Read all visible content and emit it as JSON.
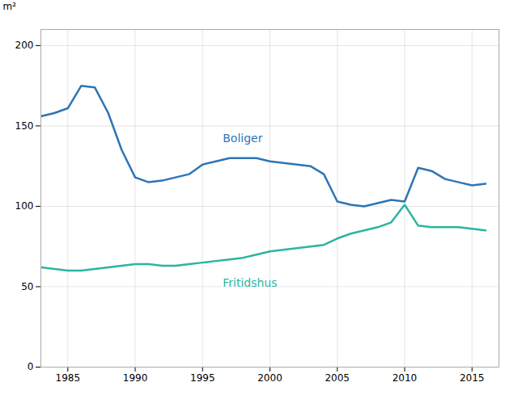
{
  "chart_data": {
    "type": "line",
    "ylabel": "m²",
    "x": [
      1983,
      1984,
      1985,
      1986,
      1987,
      1988,
      1989,
      1990,
      1991,
      1992,
      1993,
      1994,
      1995,
      1996,
      1997,
      1998,
      1999,
      2000,
      2001,
      2002,
      2003,
      2004,
      2005,
      2006,
      2007,
      2008,
      2009,
      2010,
      2011,
      2012,
      2013,
      2014,
      2015,
      2016
    ],
    "series": [
      {
        "name": "Boliger",
        "color": "#2e75b6",
        "values": [
          156,
          158,
          161,
          175,
          174,
          158,
          135,
          118,
          115,
          116,
          118,
          120,
          126,
          128,
          130,
          130,
          130,
          128,
          127,
          126,
          125,
          120,
          103,
          101,
          100,
          102,
          104,
          103,
          124,
          122,
          117,
          115,
          113,
          114
        ]
      },
      {
        "name": "Fritidshus",
        "color": "#2ab5a0",
        "values": [
          62,
          61,
          60,
          60,
          61,
          62,
          63,
          64,
          64,
          63,
          63,
          64,
          65,
          66,
          67,
          68,
          70,
          72,
          73,
          74,
          75,
          76,
          80,
          83,
          85,
          87,
          90,
          101,
          88,
          87,
          87,
          87,
          86,
          85
        ]
      }
    ],
    "annotations": [
      {
        "text": "Boliger",
        "x": 1996.5,
        "y": 140,
        "color": "#2e75b6"
      },
      {
        "text": "Fritidshus",
        "x": 1996.5,
        "y": 50,
        "color": "#2ab5a0"
      }
    ],
    "xlim": [
      1983,
      2017
    ],
    "xticks": [
      1985,
      1990,
      1995,
      2000,
      2005,
      2010,
      2015
    ],
    "ylim": [
      0,
      210
    ],
    "yticks": [
      0,
      50,
      100,
      150,
      200
    ],
    "grid": true
  }
}
